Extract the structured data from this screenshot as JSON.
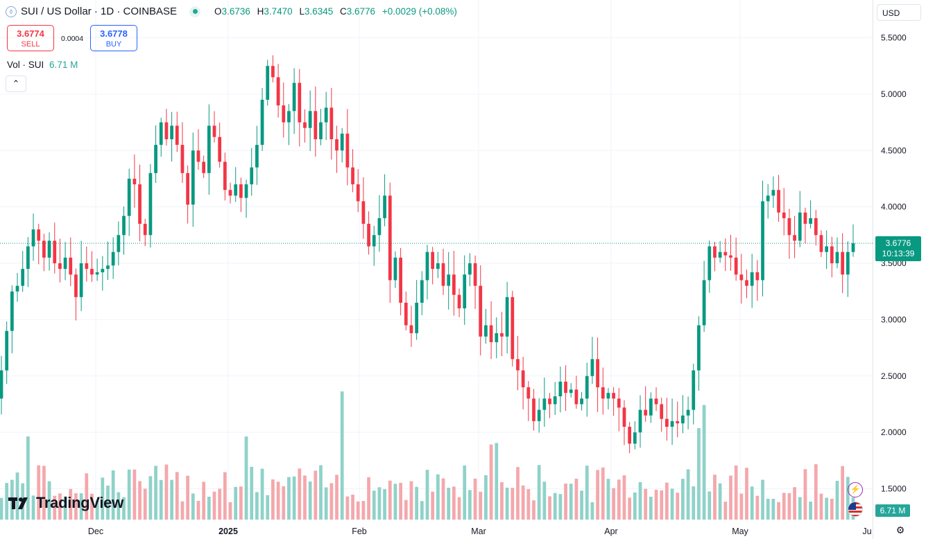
{
  "header": {
    "title": "SUI / US Dollar · 1D · COINBASE",
    "symbol_icon": "sui-droplet-icon",
    "ohlc": {
      "o_label": "O",
      "o": "3.6736",
      "h_label": "H",
      "h": "3.7470",
      "l_label": "L",
      "l": "3.6345",
      "c_label": "C",
      "c": "3.6776",
      "change": "+0.0029 (+0.08%)"
    }
  },
  "trade": {
    "sell_price": "3.6774",
    "sell_label": "SELL",
    "spread": "0.0004",
    "buy_price": "3.6778",
    "buy_label": "BUY"
  },
  "volume_legend": {
    "label": "Vol · SUI",
    "value": "6.71 M"
  },
  "currency": "USD",
  "last_price": {
    "price": "3.6776",
    "countdown": "10:13:39"
  },
  "last_volume": "6.71 M",
  "logo_text": "TradingView",
  "colors": {
    "up": "#089981",
    "down": "#f23645",
    "vol_up": "#8fd2c9",
    "vol_down": "#f4a8ac"
  },
  "chart_data": {
    "type": "candlestick",
    "interval": "1D",
    "y_ticks": [
      "5.5000",
      "5.0000",
      "4.5000",
      "4.0000",
      "3.5000",
      "3.0000",
      "2.5000",
      "2.0000",
      "1.5000"
    ],
    "ylim": [
      1.35,
      5.65
    ],
    "x_ticks": [
      "Dec",
      "2025",
      "Feb",
      "Mar",
      "Apr",
      "May",
      "Ju"
    ],
    "grid": true,
    "last_price": 3.6776,
    "candles_c": [
      2.55,
      2.9,
      3.25,
      3.3,
      3.45,
      3.65,
      3.8,
      3.7,
      3.55,
      3.7,
      3.5,
      3.45,
      3.55,
      3.4,
      3.2,
      3.5,
      3.45,
      3.4,
      3.42,
      3.45,
      3.48,
      3.6,
      3.75,
      3.92,
      4.25,
      4.2,
      3.85,
      3.75,
      4.3,
      4.55,
      4.75,
      4.6,
      4.72,
      4.55,
      4.3,
      4.02,
      4.5,
      4.4,
      4.3,
      4.72,
      4.62,
      4.4,
      4.15,
      4.1,
      4.2,
      4.08,
      4.2,
      4.35,
      4.55,
      4.95,
      5.25,
      5.15,
      4.9,
      4.75,
      4.85,
      5.1,
      4.75,
      4.7,
      4.85,
      4.6,
      4.75,
      4.88,
      4.6,
      4.5,
      4.65,
      4.35,
      4.2,
      4.05,
      3.85,
      3.65,
      3.75,
      3.9,
      4.1,
      3.35,
      3.55,
      3.15,
      2.95,
      2.88,
      3.15,
      3.35,
      3.6,
      3.45,
      3.5,
      3.3,
      3.4,
      3.22,
      3.1,
      3.4,
      3.5,
      3.3,
      2.85,
      2.95,
      2.8,
      2.88,
      2.85,
      3.2,
      2.65,
      2.55,
      2.4,
      2.3,
      2.1,
      2.2,
      2.3,
      2.25,
      2.32,
      2.45,
      2.35,
      2.38,
      2.25,
      2.3,
      2.5,
      2.65,
      2.4,
      2.3,
      2.35,
      2.3,
      2.22,
      2.05,
      1.9,
      2.0,
      2.2,
      2.15,
      2.3,
      2.25,
      2.12,
      2.05,
      2.1,
      2.08,
      2.15,
      2.2,
      2.55,
      2.95,
      3.35,
      3.65,
      3.55,
      3.6,
      3.57,
      3.55,
      3.4,
      3.35,
      3.3,
      3.42,
      3.35,
      4.05,
      4.1,
      4.15,
      3.95,
      3.9,
      3.75,
      3.7,
      3.95,
      3.85,
      3.9,
      3.75,
      3.6,
      3.65,
      3.5,
      3.6,
      3.4,
      3.6,
      3.6776
    ]
  }
}
